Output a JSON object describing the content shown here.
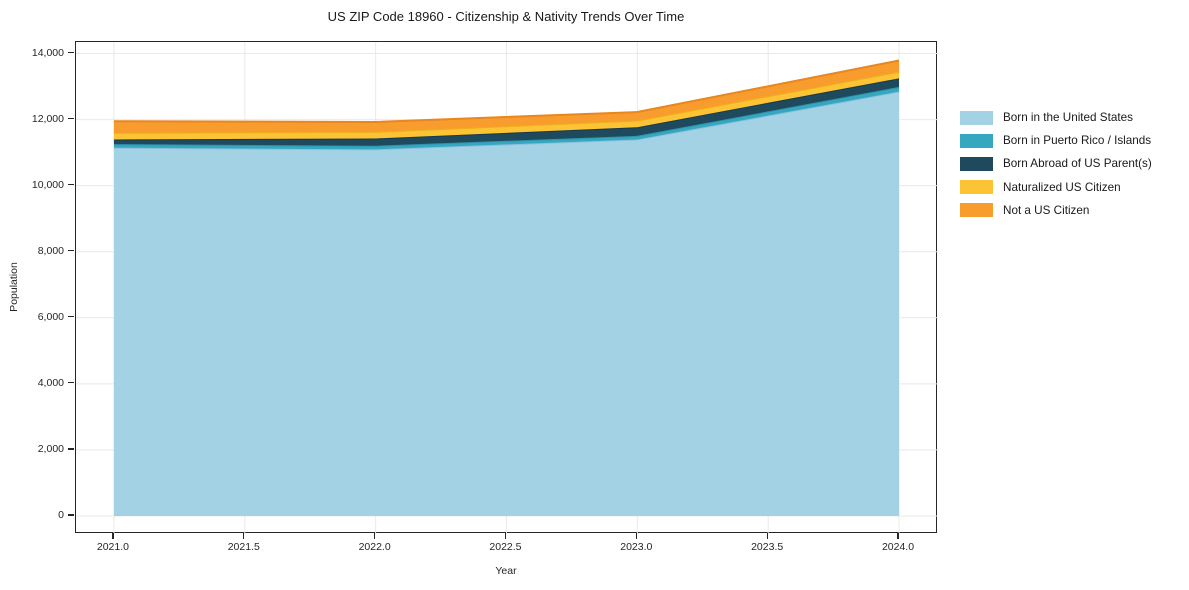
{
  "title": "US ZIP Code 18960 - Citizenship & Nativity Trends Over Time",
  "axes": {
    "x_label": "Year",
    "y_label": "Population",
    "x_tick_labels": [
      "2021.0",
      "2021.5",
      "2022.0",
      "2022.5",
      "2023.0",
      "2023.5",
      "2024.0"
    ],
    "y_tick_labels": [
      "0",
      "2,000",
      "4,000",
      "6,000",
      "8,000",
      "10,000",
      "12,000",
      "14,000"
    ]
  },
  "colors": {
    "background": "#ffffff",
    "spine": "#262626",
    "grid": "#e9e9e9",
    "tick_text": "#262626",
    "title_text": "#1a1a1a"
  },
  "legend": {
    "position": "right of plot, no border"
  },
  "chart_data": {
    "type": "area",
    "stacked": true,
    "title": "US ZIP Code 18960 - Citizenship & Nativity Trends Over Time",
    "xlabel": "Year",
    "ylabel": "Population",
    "x": [
      2021,
      2022,
      2023,
      2024
    ],
    "series": [
      {
        "name": "Born in the United States",
        "color": "#a3d2e5",
        "edge_color": "#8cc1da",
        "values": [
          11150,
          11100,
          11400,
          12850
        ]
      },
      {
        "name": "Born in Puerto Rico / Islands",
        "color": "#35a7c0",
        "edge_color": "#2e93ab",
        "values": [
          110,
          110,
          110,
          140
        ]
      },
      {
        "name": "Born Abroad of US Parent(s)",
        "color": "#1f4a5e",
        "edge_color": "#183a4a",
        "values": [
          140,
          220,
          260,
          260
        ]
      },
      {
        "name": "Naturalized US Citizen",
        "color": "#fcc334",
        "edge_color": "#edb01e",
        "values": [
          200,
          200,
          200,
          200
        ]
      },
      {
        "name": "Not a US Citizen",
        "color": "#f89c2e",
        "edge_color": "#e8861f",
        "values": [
          350,
          300,
          260,
          340
        ]
      }
    ],
    "stacked_totals": [
      11950,
      11930,
      12230,
      13790
    ],
    "x_tick_values": [
      2021.0,
      2021.5,
      2022.0,
      2022.5,
      2023.0,
      2023.5,
      2024.0
    ],
    "y_tick_values": [
      0,
      2000,
      4000,
      6000,
      8000,
      10000,
      12000,
      14000
    ],
    "xlim": [
      2020.855,
      2024.149
    ],
    "ylim": [
      -545,
      14350
    ],
    "grid": true,
    "legend_position": "center right outside axes"
  }
}
